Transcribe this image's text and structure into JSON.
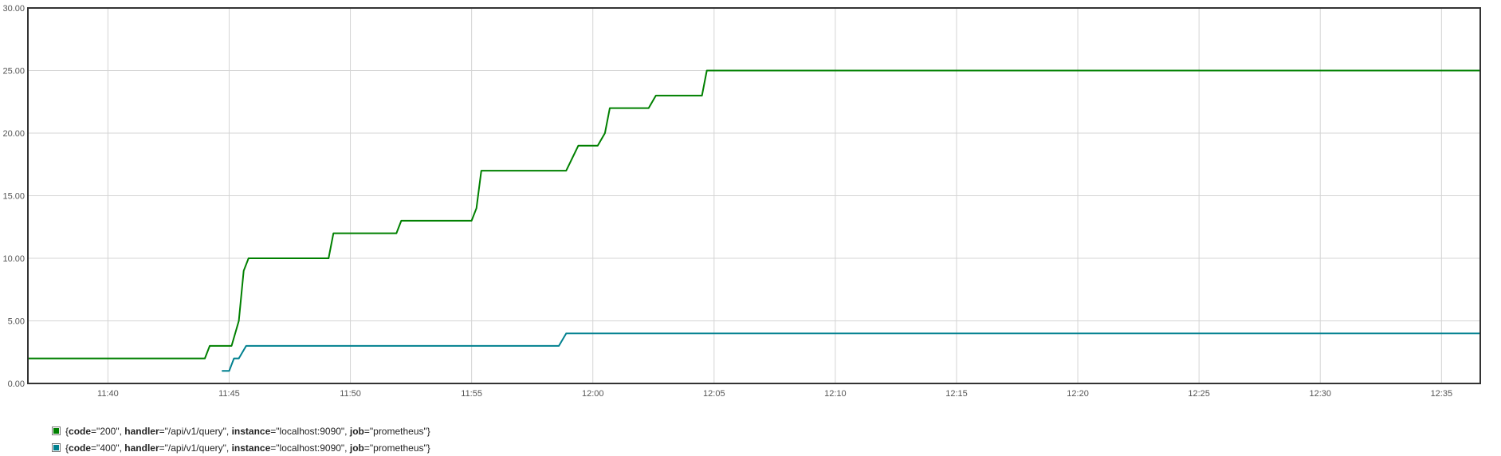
{
  "chart_data": {
    "type": "line",
    "title": "",
    "xlabel": "",
    "ylabel": "",
    "ylim": [
      0,
      30
    ],
    "y_ticks": [
      "0.00",
      "5.00",
      "10.00",
      "15.00",
      "20.00",
      "25.00",
      "30.00"
    ],
    "x_ticks": [
      "11:40",
      "11:45",
      "11:50",
      "11:55",
      "12:00",
      "12:05",
      "12:10",
      "12:15",
      "12:20",
      "12:25",
      "12:30",
      "12:35"
    ],
    "x_range_minutes": [
      "11:36.7",
      "12:36.6"
    ],
    "grid": true,
    "legend_position": "bottom-left",
    "series": [
      {
        "color": "#008000",
        "labels": [
          {
            "key": "code",
            "value": "200"
          },
          {
            "key": "handler",
            "value": "/api/v1/query"
          },
          {
            "key": "instance",
            "value": "localhost:9090"
          },
          {
            "key": "job",
            "value": "prometheus"
          }
        ],
        "points": [
          [
            "11:36.7",
            2
          ],
          [
            "11:44.0",
            2
          ],
          [
            "11:44.2",
            3
          ],
          [
            "11:45.1",
            3
          ],
          [
            "11:45.4",
            5
          ],
          [
            "11:45.6",
            9
          ],
          [
            "11:45.8",
            10
          ],
          [
            "11:49.1",
            10
          ],
          [
            "11:49.3",
            12
          ],
          [
            "11:51.9",
            12
          ],
          [
            "11:52.1",
            13
          ],
          [
            "11:55.0",
            13
          ],
          [
            "11:55.2",
            14
          ],
          [
            "11:55.4",
            17
          ],
          [
            "11:58.9",
            17
          ],
          [
            "11:59.4",
            19
          ],
          [
            "12:00.2",
            19
          ],
          [
            "12:00.5",
            20
          ],
          [
            "12:00.7",
            22
          ],
          [
            "12:02.3",
            22
          ],
          [
            "12:02.6",
            23
          ],
          [
            "12:04.5",
            23
          ],
          [
            "12:04.7",
            25
          ],
          [
            "12:36.6",
            25
          ]
        ]
      },
      {
        "color": "#00808f",
        "labels": [
          {
            "key": "code",
            "value": "400"
          },
          {
            "key": "handler",
            "value": "/api/v1/query"
          },
          {
            "key": "instance",
            "value": "localhost:9090"
          },
          {
            "key": "job",
            "value": "prometheus"
          }
        ],
        "points": [
          [
            "11:44.7",
            1
          ],
          [
            "11:45.0",
            1
          ],
          [
            "11:45.2",
            2
          ],
          [
            "11:45.4",
            2
          ],
          [
            "11:45.7",
            3
          ],
          [
            "11:58.6",
            3
          ],
          [
            "11:58.9",
            4
          ],
          [
            "12:36.6",
            4
          ]
        ]
      }
    ]
  }
}
